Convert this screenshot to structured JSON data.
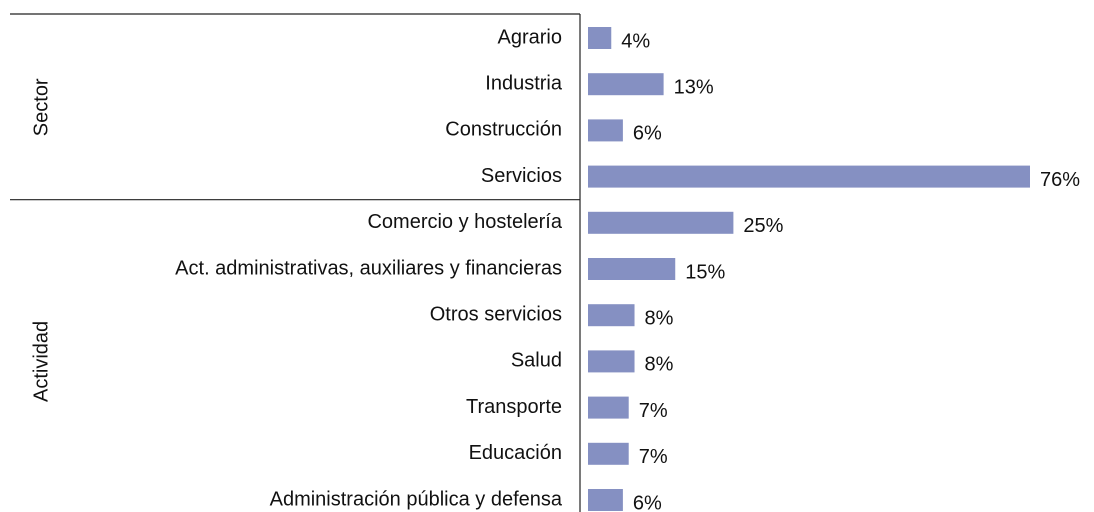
{
  "chart_data": {
    "type": "bar",
    "color": "#8590c2",
    "groups": [
      {
        "name": "Sector",
        "categories": [
          "Agrario",
          "Industria",
          "Construcción",
          "Servicios"
        ],
        "values": [
          4,
          13,
          6,
          76
        ],
        "value_labels": [
          "4%",
          "13%",
          "6%",
          "76%"
        ]
      },
      {
        "name": "Actividad",
        "categories": [
          "Comercio y hostelería",
          "Act. administrativas, auxiliares y financieras",
          "Otros servicios",
          "Salud",
          "Transporte",
          "Educación",
          "Administración pública y defensa"
        ],
        "values": [
          25,
          15,
          8,
          8,
          7,
          7,
          6
        ],
        "value_labels": [
          "25%",
          "15%",
          "8%",
          "8%",
          "7%",
          "7%",
          "6%"
        ]
      }
    ]
  }
}
